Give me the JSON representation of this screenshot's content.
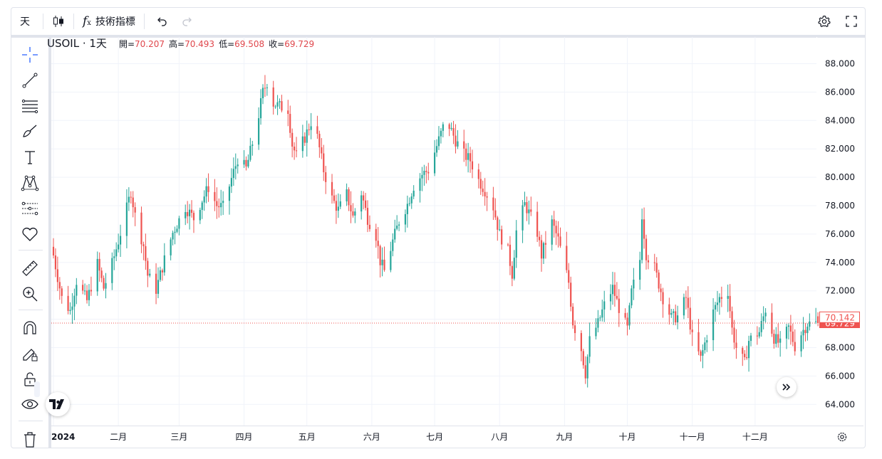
{
  "toolbar": {
    "interval": "天",
    "indicators_label": "技術指標"
  },
  "legend": {
    "symbol": "USOIL · 1天",
    "open_label": "開=",
    "open": "70.207",
    "high_label": "高=",
    "high": "70.493",
    "low_label": "低=",
    "low": "69.508",
    "close_label": "收=",
    "close": "69.729"
  },
  "price_tags": {
    "last": "70.142",
    "close": "69.729"
  },
  "colors": {
    "up": "#26a69a",
    "down": "#ef5350",
    "grid": "#f0f3fa",
    "text": "#131722"
  },
  "chart_data": {
    "type": "candlestick",
    "symbol": "USOIL",
    "interval": "1天",
    "x_range": [
      "2024-01-01",
      "2024-12-31"
    ],
    "ylim": [
      62.8,
      90.2
    ],
    "yticks": [
      64,
      66,
      68,
      70,
      72,
      74,
      76,
      78,
      80,
      82,
      84,
      86,
      88
    ],
    "ytick_labels": [
      "64.000",
      "66.000",
      "68.000",
      "70.000",
      "72.000",
      "74.000",
      "76.000",
      "78.000",
      "80.000",
      "82.000",
      "84.000",
      "86.000",
      "88.000"
    ],
    "xtick_labels": [
      {
        "date": "2024-01-01",
        "label": "2024"
      },
      {
        "date": "2024-02-01",
        "label": "二月"
      },
      {
        "date": "2024-03-01",
        "label": "三月"
      },
      {
        "date": "2024-04-01",
        "label": "四月"
      },
      {
        "date": "2024-05-01",
        "label": "五月"
      },
      {
        "date": "2024-06-01",
        "label": "六月"
      },
      {
        "date": "2024-07-01",
        "label": "七月"
      },
      {
        "date": "2024-08-01",
        "label": "八月"
      },
      {
        "date": "2024-09-01",
        "label": "九月"
      },
      {
        "date": "2024-10-01",
        "label": "十月"
      },
      {
        "date": "2024-11-01",
        "label": "十一月"
      },
      {
        "date": "2024-12-01",
        "label": "十二月"
      }
    ],
    "close_line": 69.729,
    "close_series": [
      {
        "date": "2024-01-01",
        "close": 74.5
      },
      {
        "date": "2024-01-05",
        "close": 71.5
      },
      {
        "date": "2024-01-09",
        "close": 70.6
      },
      {
        "date": "2024-01-12",
        "close": 72.7
      },
      {
        "date": "2024-01-17",
        "close": 71.3
      },
      {
        "date": "2024-01-22",
        "close": 73.9
      },
      {
        "date": "2024-01-25",
        "close": 72.2
      },
      {
        "date": "2024-01-29",
        "close": 73.9
      },
      {
        "date": "2024-02-01",
        "close": 75.5
      },
      {
        "date": "2024-02-05",
        "close": 77.8
      },
      {
        "date": "2024-02-07",
        "close": 79.0
      },
      {
        "date": "2024-02-09",
        "close": 77.3
      },
      {
        "date": "2024-02-13",
        "close": 75.2
      },
      {
        "date": "2024-02-15",
        "close": 73.1
      },
      {
        "date": "2024-02-19",
        "close": 72.1
      },
      {
        "date": "2024-02-23",
        "close": 74.2
      },
      {
        "date": "2024-02-27",
        "close": 76.1
      },
      {
        "date": "2024-03-04",
        "close": 77.9
      },
      {
        "date": "2024-03-08",
        "close": 77.1
      },
      {
        "date": "2024-03-12",
        "close": 78.4
      },
      {
        "date": "2024-03-15",
        "close": 79.3
      },
      {
        "date": "2024-03-19",
        "close": 78.0
      },
      {
        "date": "2024-03-22",
        "close": 77.9
      },
      {
        "date": "2024-03-26",
        "close": 79.9
      },
      {
        "date": "2024-03-29",
        "close": 81.3
      },
      {
        "date": "2024-04-02",
        "close": 80.6
      },
      {
        "date": "2024-04-05",
        "close": 82.4
      },
      {
        "date": "2024-04-08",
        "close": 84.4
      },
      {
        "date": "2024-04-10",
        "close": 86.0
      },
      {
        "date": "2024-04-12",
        "close": 86.7
      },
      {
        "date": "2024-04-15",
        "close": 85.2
      },
      {
        "date": "2024-04-18",
        "close": 85.0
      },
      {
        "date": "2024-04-22",
        "close": 84.8
      },
      {
        "date": "2024-04-24",
        "close": 82.3
      },
      {
        "date": "2024-04-26",
        "close": 81.5
      },
      {
        "date": "2024-04-30",
        "close": 82.8
      },
      {
        "date": "2024-05-03",
        "close": 83.9
      },
      {
        "date": "2024-05-06",
        "close": 82.8
      },
      {
        "date": "2024-05-09",
        "close": 80.5
      },
      {
        "date": "2024-05-13",
        "close": 78.5
      },
      {
        "date": "2024-05-16",
        "close": 77.7
      },
      {
        "date": "2024-05-20",
        "close": 78.8
      },
      {
        "date": "2024-05-23",
        "close": 77.2
      },
      {
        "date": "2024-05-27",
        "close": 78.9
      },
      {
        "date": "2024-05-30",
        "close": 77.1
      },
      {
        "date": "2024-06-03",
        "close": 75.9
      },
      {
        "date": "2024-06-05",
        "close": 74.1
      },
      {
        "date": "2024-06-07",
        "close": 73.4
      },
      {
        "date": "2024-06-11",
        "close": 75.5
      },
      {
        "date": "2024-06-14",
        "close": 76.9
      },
      {
        "date": "2024-06-18",
        "close": 78.1
      },
      {
        "date": "2024-06-21",
        "close": 79.4
      },
      {
        "date": "2024-06-25",
        "close": 80.2
      },
      {
        "date": "2024-06-28",
        "close": 80.5
      },
      {
        "date": "2024-07-02",
        "close": 82.2
      },
      {
        "date": "2024-07-05",
        "close": 83.5
      },
      {
        "date": "2024-07-08",
        "close": 83.6
      },
      {
        "date": "2024-07-11",
        "close": 82.6
      },
      {
        "date": "2024-07-15",
        "close": 81.6
      },
      {
        "date": "2024-07-18",
        "close": 81.2
      },
      {
        "date": "2024-07-22",
        "close": 79.8
      },
      {
        "date": "2024-07-25",
        "close": 79.1
      },
      {
        "date": "2024-07-29",
        "close": 77.9
      },
      {
        "date": "2024-08-01",
        "close": 76.0
      },
      {
        "date": "2024-08-05",
        "close": 74.8
      },
      {
        "date": "2024-08-07",
        "close": 73.2
      },
      {
        "date": "2024-08-09",
        "close": 76.2
      },
      {
        "date": "2024-08-13",
        "close": 78.1
      },
      {
        "date": "2024-08-15",
        "close": 77.5
      },
      {
        "date": "2024-08-19",
        "close": 76.1
      },
      {
        "date": "2024-08-21",
        "close": 74.5
      },
      {
        "date": "2024-08-26",
        "close": 76.8
      },
      {
        "date": "2024-08-29",
        "close": 75.6
      },
      {
        "date": "2024-09-03",
        "close": 72.6
      },
      {
        "date": "2024-09-05",
        "close": 69.8
      },
      {
        "date": "2024-09-09",
        "close": 67.9
      },
      {
        "date": "2024-09-11",
        "close": 66.2
      },
      {
        "date": "2024-09-13",
        "close": 68.5
      },
      {
        "date": "2024-09-17",
        "close": 69.7
      },
      {
        "date": "2024-09-20",
        "close": 71.0
      },
      {
        "date": "2024-09-24",
        "close": 72.2
      },
      {
        "date": "2024-09-27",
        "close": 70.8
      },
      {
        "date": "2024-10-01",
        "close": 69.3
      },
      {
        "date": "2024-10-03",
        "close": 71.9
      },
      {
        "date": "2024-10-07",
        "close": 74.2
      },
      {
        "date": "2024-10-08",
        "close": 77.4
      },
      {
        "date": "2024-10-10",
        "close": 74.6
      },
      {
        "date": "2024-10-14",
        "close": 73.6
      },
      {
        "date": "2024-10-16",
        "close": 72.5
      },
      {
        "date": "2024-10-18",
        "close": 71.5
      },
      {
        "date": "2024-10-22",
        "close": 70.1
      },
      {
        "date": "2024-10-25",
        "close": 70.2
      },
      {
        "date": "2024-10-29",
        "close": 71.5
      },
      {
        "date": "2024-11-01",
        "close": 68.7
      },
      {
        "date": "2024-11-05",
        "close": 67.2
      },
      {
        "date": "2024-11-07",
        "close": 68.3
      },
      {
        "date": "2024-11-11",
        "close": 70.5
      },
      {
        "date": "2024-11-14",
        "close": 71.5
      },
      {
        "date": "2024-11-18",
        "close": 72.0
      },
      {
        "date": "2024-11-20",
        "close": 69.3
      },
      {
        "date": "2024-11-22",
        "close": 68.0
      },
      {
        "date": "2024-11-26",
        "close": 66.9
      },
      {
        "date": "2024-11-28",
        "close": 68.5
      },
      {
        "date": "2024-12-03",
        "close": 69.1
      },
      {
        "date": "2024-12-06",
        "close": 70.7
      },
      {
        "date": "2024-12-10",
        "close": 68.7
      },
      {
        "date": "2024-12-13",
        "close": 68.2
      },
      {
        "date": "2024-12-17",
        "close": 69.4
      },
      {
        "date": "2024-12-20",
        "close": 68.1
      },
      {
        "date": "2024-12-23",
        "close": 69.0
      },
      {
        "date": "2024-12-26",
        "close": 69.7
      },
      {
        "date": "2024-12-31",
        "close": 69.729
      }
    ]
  }
}
